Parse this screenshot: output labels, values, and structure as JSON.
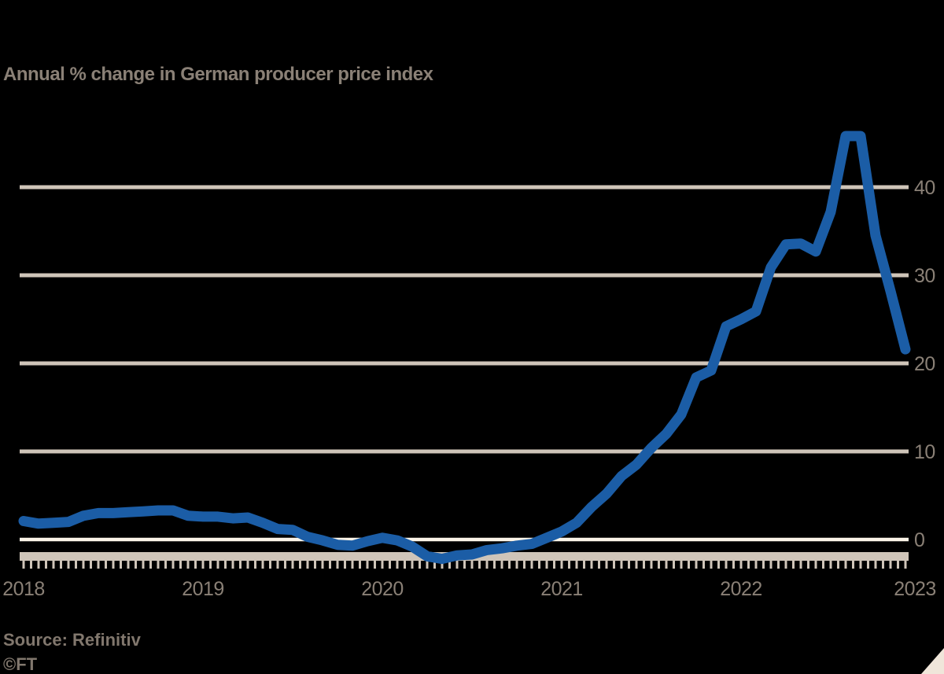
{
  "title": "Annual % change in German producer price index",
  "source": "Source: Refinitiv",
  "ft_mark": "©FT",
  "colors": {
    "background": "#000000",
    "line": "#1b5da6",
    "gridline": "#cfc5b9",
    "zero_line": "#fbf4e8",
    "axis_band": "#cfc5b9",
    "text": "#8a8076",
    "corner_fold": "#f0e6da"
  },
  "chart_data": {
    "type": "line",
    "title": "Annual % change in German producer price index",
    "xlabel": "",
    "ylabel": "",
    "x_tick_years": [
      "2018",
      "2019",
      "2020",
      "2021",
      "2022",
      "2023"
    ],
    "y_ticks": [
      40,
      30,
      20,
      10,
      0
    ],
    "ylim": [
      -3,
      47
    ],
    "grid": "horizontal",
    "zero_line_highlighted": true,
    "legend": "none",
    "frequency": "monthly",
    "x_start": "2018-01",
    "x_end": "2022-12",
    "series": [
      {
        "name": "Producer price index, annual % change",
        "values": [
          2.1,
          1.8,
          1.9,
          2.0,
          2.7,
          3.0,
          3.0,
          3.1,
          3.2,
          3.3,
          3.3,
          2.7,
          2.6,
          2.6,
          2.4,
          2.5,
          1.9,
          1.2,
          1.1,
          0.3,
          -0.1,
          -0.6,
          -0.7,
          -0.2,
          0.2,
          -0.1,
          -0.8,
          -1.9,
          -2.2,
          -1.8,
          -1.7,
          -1.2,
          -1.0,
          -0.7,
          -0.5,
          0.2,
          0.9,
          1.9,
          3.7,
          5.2,
          7.2,
          8.5,
          10.4,
          12.0,
          14.2,
          18.4,
          19.2,
          24.2,
          25.0,
          25.9,
          30.9,
          33.5,
          33.6,
          32.7,
          37.2,
          45.8,
          45.8,
          34.5,
          28.2,
          21.6
        ]
      }
    ]
  }
}
